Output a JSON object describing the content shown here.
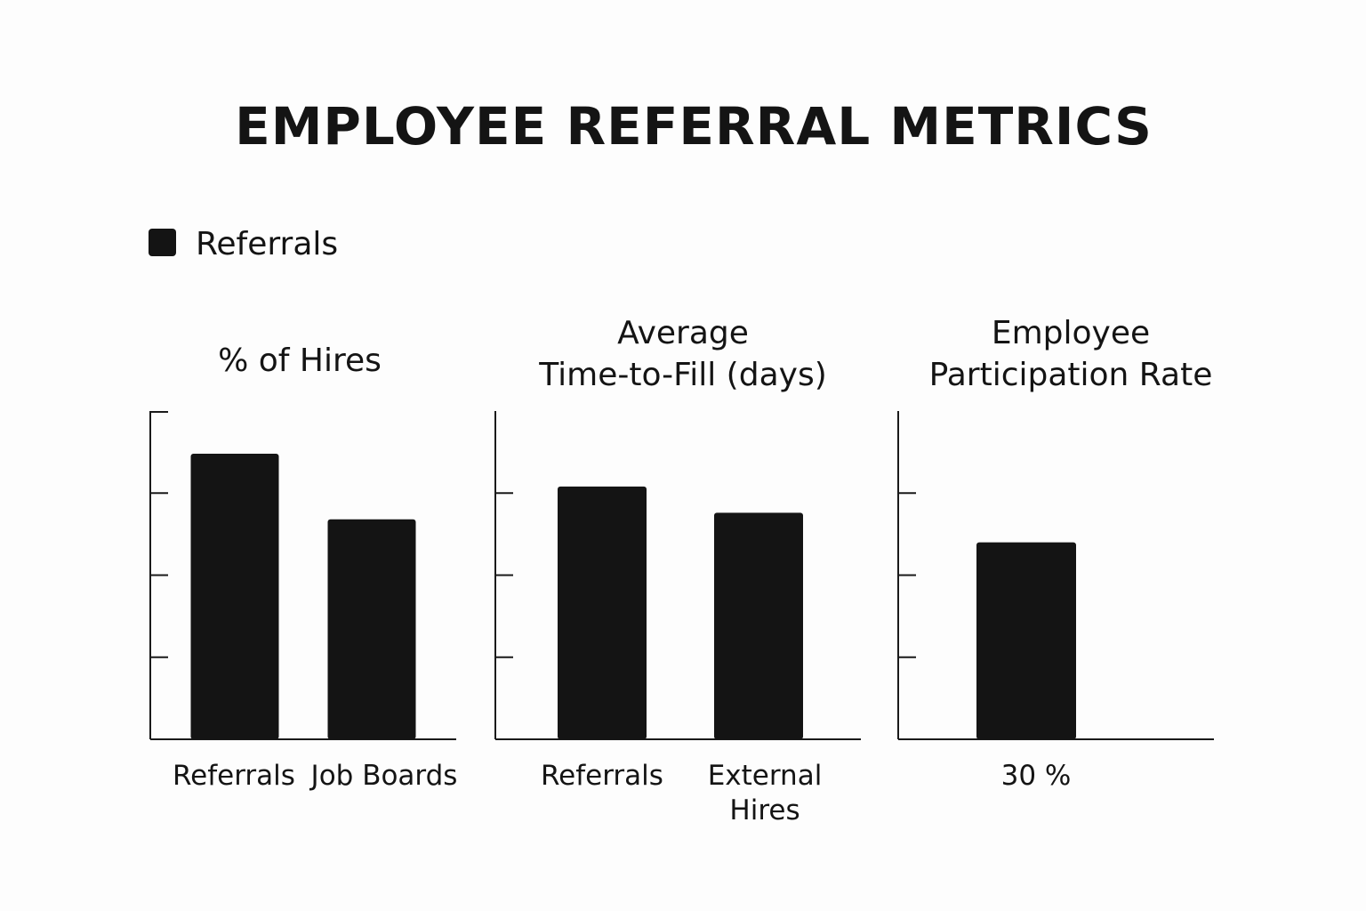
{
  "chart_data": {
    "type": "bar",
    "title": "EMPLOYEE REFERRAL METRICS",
    "legend": {
      "items": [
        {
          "label": "Referrals",
          "color": "#141414"
        }
      ],
      "placement": "top-left"
    },
    "bar_color": "#141414",
    "axis_color": "#1a1a1a",
    "panels": [
      {
        "title": [
          "% of Hires"
        ],
        "categories": [
          [
            "Referrals"
          ],
          [
            "Job Boards"
          ]
        ],
        "values": [
          0.87,
          0.67
        ],
        "ylim": [
          0,
          1
        ]
      },
      {
        "title": [
          "Average",
          "Time-to-Fill (days)"
        ],
        "categories": [
          [
            "Referrals"
          ],
          [
            "External",
            "Hires"
          ]
        ],
        "values": [
          0.77,
          0.69
        ],
        "ylim": [
          0,
          1
        ]
      },
      {
        "title": [
          "Employee",
          "Participation Rate"
        ],
        "categories": [
          [
            "30 %"
          ]
        ],
        "values": [
          0.6
        ],
        "ylim": [
          0,
          1
        ]
      }
    ]
  }
}
